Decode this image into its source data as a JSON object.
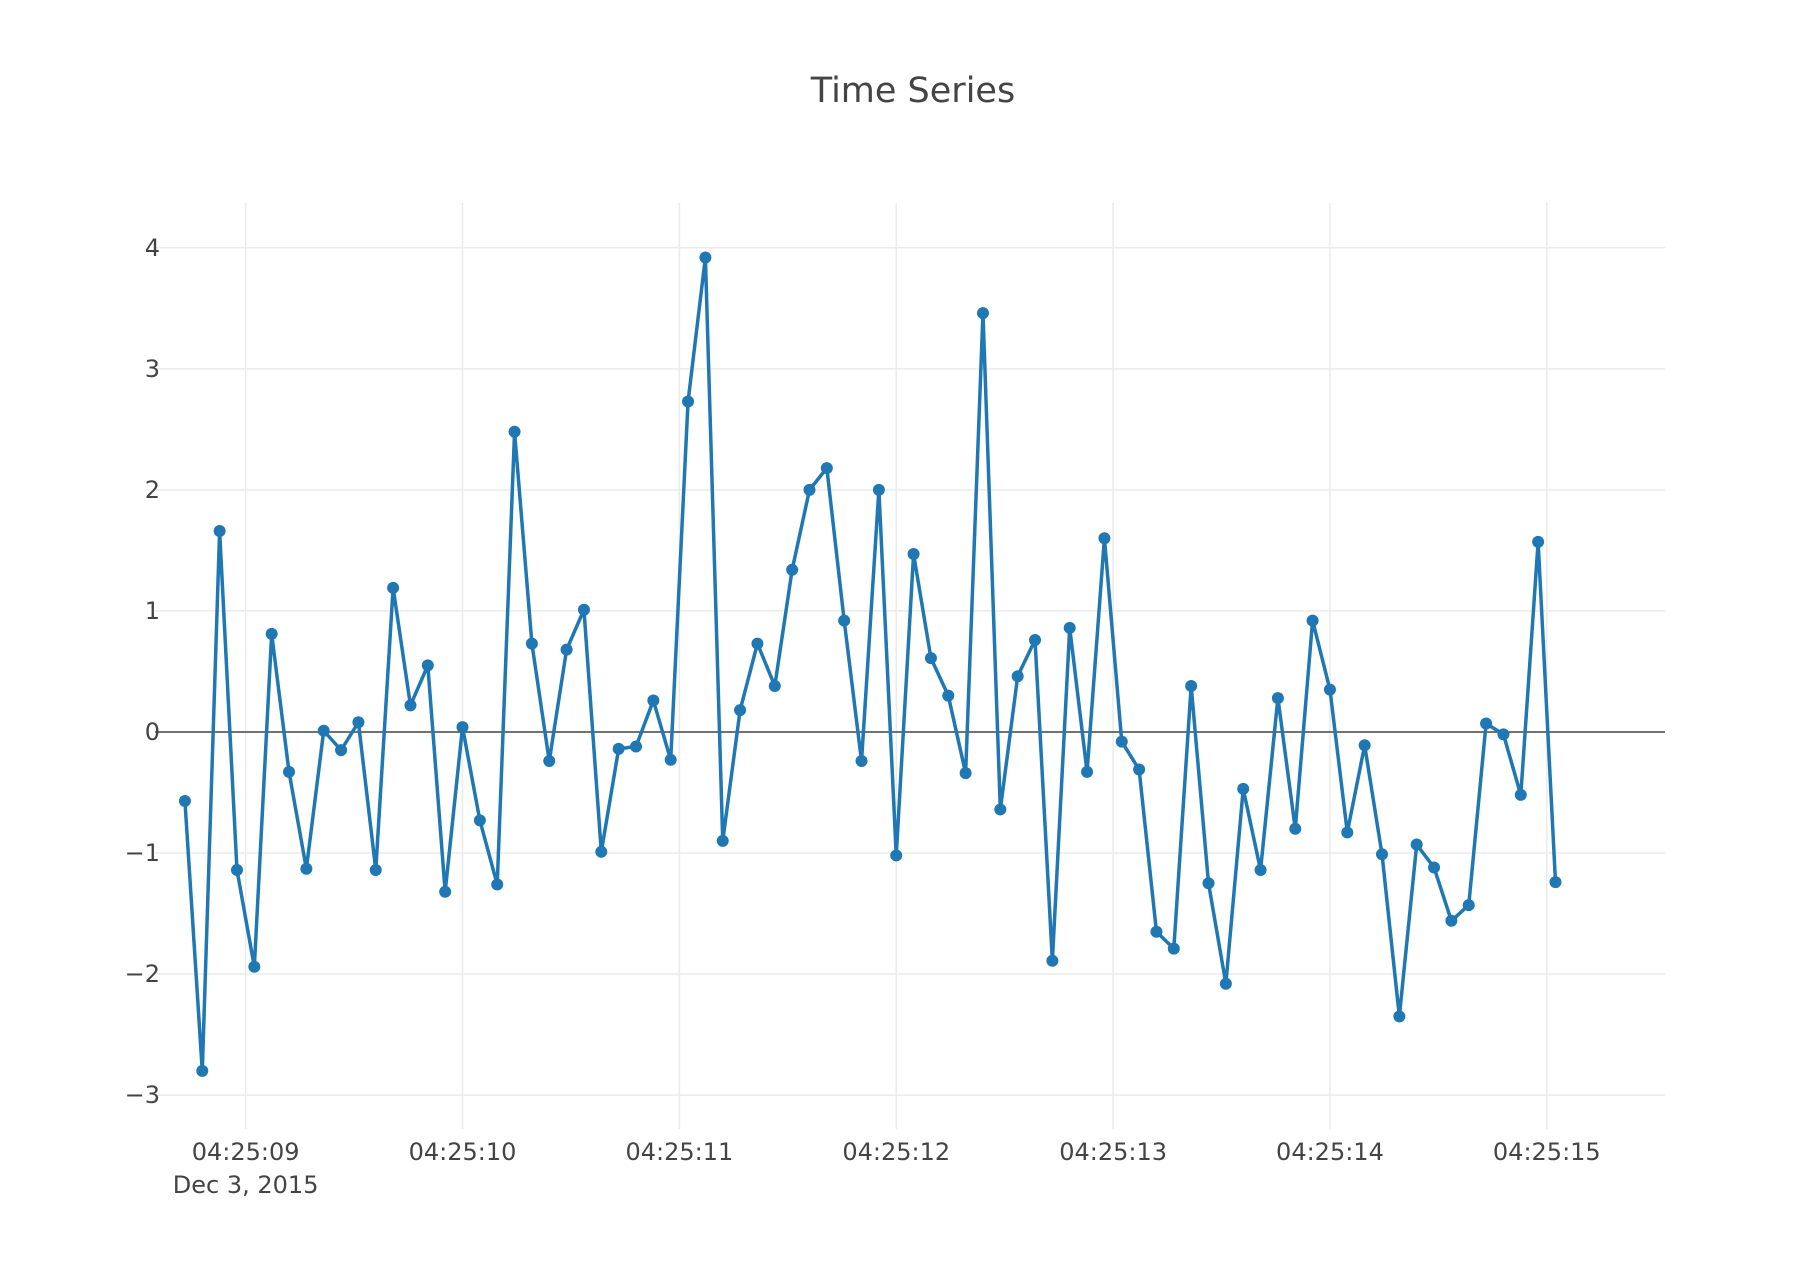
{
  "chart_data": {
    "type": "line",
    "title": "Time Series",
    "xlabel": "",
    "ylabel": "",
    "x_start": "2015-12-03 04:25:08.720",
    "x_step_seconds": 0.08,
    "xlim": [
      "2015-12-03 04:25:08.582",
      "2015-12-03 04:25:15.545"
    ],
    "ylim": [
      -3.28,
      4.37
    ],
    "x_ticks": [
      {
        "time": "2015-12-03 04:25:09",
        "label": "04:25:09",
        "sublabel": "Dec 3, 2015"
      },
      {
        "time": "2015-12-03 04:25:10",
        "label": "04:25:10"
      },
      {
        "time": "2015-12-03 04:25:11",
        "label": "04:25:11"
      },
      {
        "time": "2015-12-03 04:25:12",
        "label": "04:25:12"
      },
      {
        "time": "2015-12-03 04:25:13",
        "label": "04:25:13"
      },
      {
        "time": "2015-12-03 04:25:14",
        "label": "04:25:14"
      },
      {
        "time": "2015-12-03 04:25:15",
        "label": "04:25:15"
      }
    ],
    "y_ticks": [
      {
        "value": 4,
        "label": "4"
      },
      {
        "value": 3,
        "label": "3"
      },
      {
        "value": 2,
        "label": "2"
      },
      {
        "value": 1,
        "label": "1"
      },
      {
        "value": 0,
        "label": "0"
      },
      {
        "value": -1,
        "label": "−1"
      },
      {
        "value": -2,
        "label": "−2"
      },
      {
        "value": -3,
        "label": "−3"
      }
    ],
    "grid": true,
    "zeroline": true,
    "series": [
      {
        "color": "#1f77b4",
        "mode": "lines+markers",
        "values": [
          -0.57,
          -2.8,
          1.66,
          -1.14,
          -1.94,
          0.81,
          -0.33,
          -1.13,
          0.01,
          -0.15,
          0.08,
          -1.14,
          1.19,
          0.22,
          0.55,
          -1.32,
          0.04,
          -0.73,
          -1.26,
          2.48,
          0.73,
          -0.24,
          0.68,
          1.01,
          -0.99,
          -0.14,
          -0.12,
          0.26,
          -0.23,
          2.73,
          3.92,
          -0.9,
          0.18,
          0.73,
          0.38,
          1.34,
          2.0,
          2.18,
          0.92,
          -0.24,
          2.0,
          -1.02,
          1.47,
          0.61,
          0.3,
          -0.34,
          3.46,
          -0.64,
          0.46,
          0.76,
          -1.89,
          0.86,
          -0.33,
          1.6,
          -0.08,
          -0.31,
          -1.65,
          -1.79,
          0.38,
          -1.25,
          -2.08,
          -0.47,
          -1.14,
          0.28,
          -0.8,
          0.92,
          0.35,
          -0.83,
          -0.11,
          -1.01,
          -2.35,
          -0.93,
          -1.12,
          -1.56,
          -1.43,
          0.07,
          -0.02,
          -0.52,
          1.57,
          -1.24
        ]
      }
    ]
  }
}
